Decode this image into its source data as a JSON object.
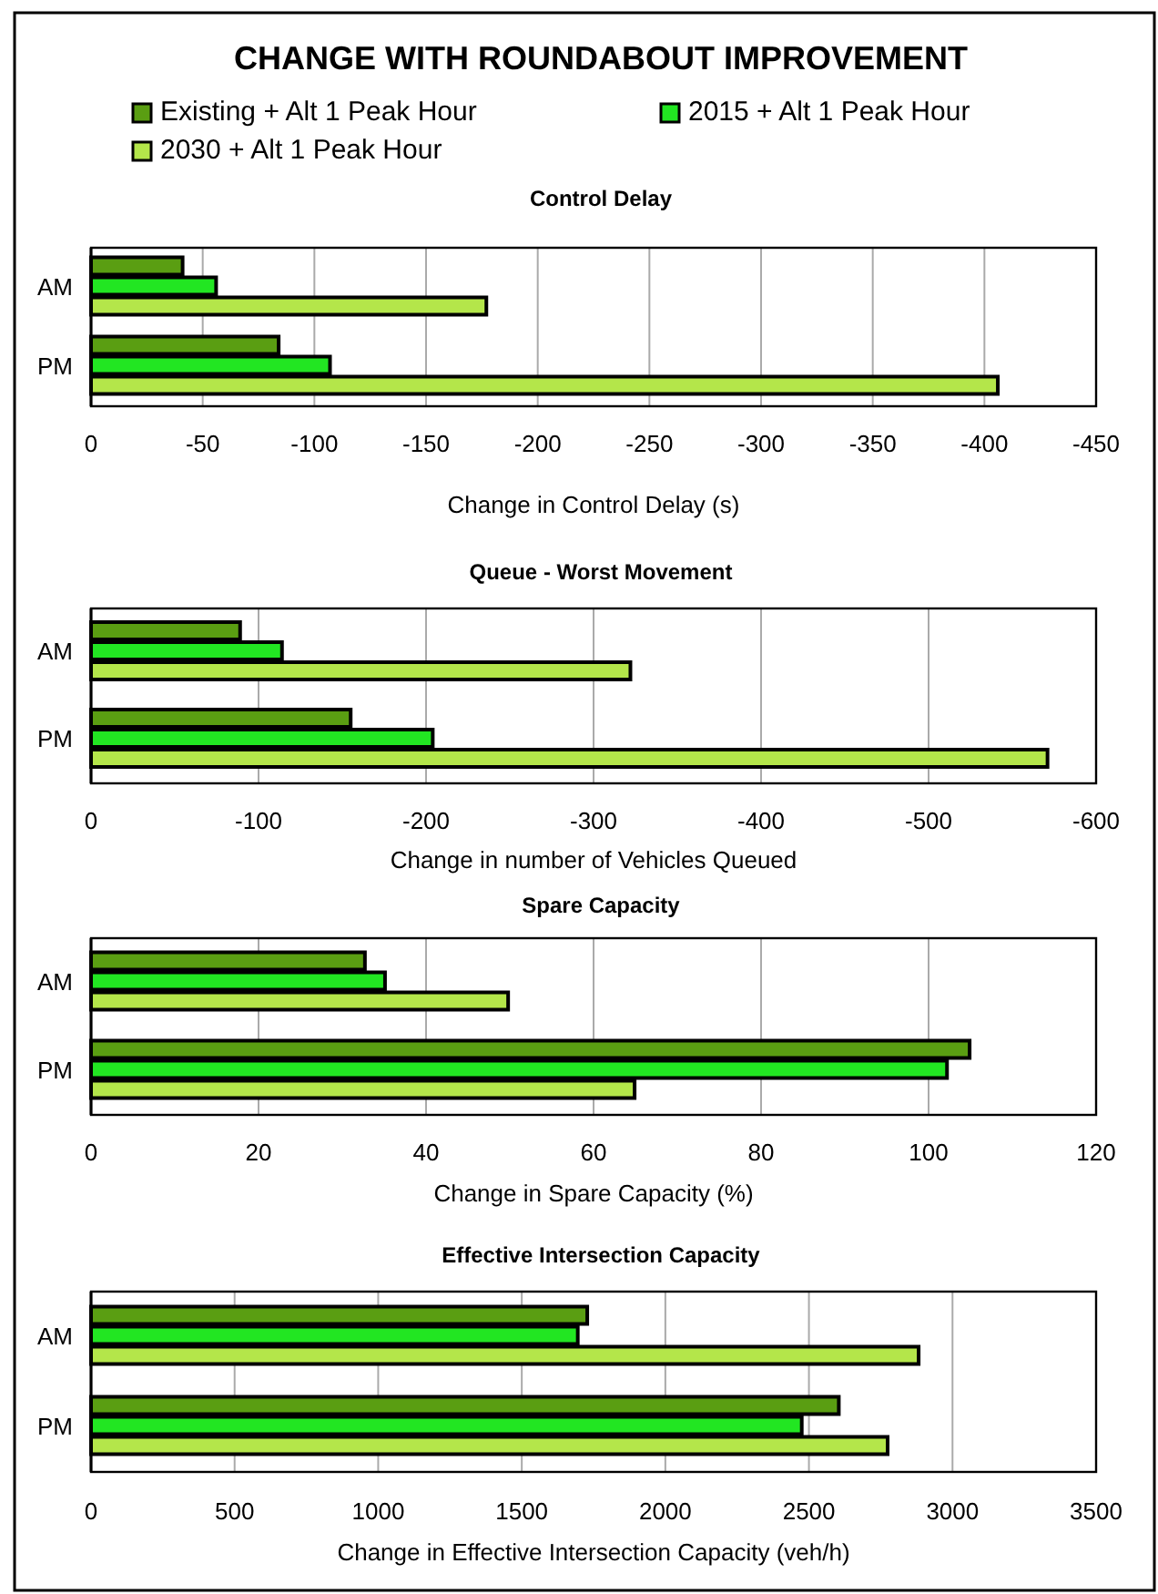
{
  "chart_data": [
    {
      "type": "bar",
      "orientation": "horizontal",
      "title": "CHANGE WITH ROUNDABOUT IMPROVEMENT",
      "subtitle": "Control Delay",
      "legend": "top",
      "xlabel": "Change in  Control Delay (s)",
      "categories": [
        "AM",
        "PM"
      ],
      "xlim": [
        0,
        -450
      ],
      "xticks": [
        0,
        -50,
        -100,
        -150,
        -200,
        -250,
        -300,
        -350,
        -400,
        -450
      ],
      "grid": "x",
      "series": [
        {
          "name": "Existing + Alt 1 Peak Hour",
          "color": "#5a9e12",
          "values": [
            -41,
            -84
          ]
        },
        {
          "name": "2015 + Alt 1 Peak Hour",
          "color": "#22e622",
          "values": [
            -56,
            -107
          ]
        },
        {
          "name": "2030 + Alt 1 Peak Hour",
          "color": "#b4e64a",
          "values": [
            -177,
            -406
          ]
        }
      ]
    },
    {
      "type": "bar",
      "orientation": "horizontal",
      "title": "Queue - Worst Movement",
      "xlabel": "Change in number of Vehicles Queued",
      "categories": [
        "AM",
        "PM"
      ],
      "xlim": [
        0,
        -600
      ],
      "xticks": [
        0,
        -100,
        -200,
        -300,
        -400,
        -500,
        -600
      ],
      "grid": "x",
      "series": [
        {
          "color": "#5a9e12",
          "values": [
            -89,
            -155
          ]
        },
        {
          "color": "#22e622",
          "values": [
            -114,
            -204
          ]
        },
        {
          "color": "#b4e64a",
          "values": [
            -322,
            -571
          ]
        }
      ]
    },
    {
      "type": "bar",
      "orientation": "horizontal",
      "title": "Spare Capacity",
      "xlabel": "Change in Spare Capacity (%)",
      "categories": [
        "AM",
        "PM"
      ],
      "xlim": [
        0,
        120
      ],
      "xticks": [
        0,
        20,
        40,
        60,
        80,
        100,
        120
      ],
      "grid": "x",
      "series": [
        {
          "color": "#5a9e12",
          "values": [
            32.7,
            104.9
          ]
        },
        {
          "color": "#22e622",
          "values": [
            35.1,
            102.2
          ]
        },
        {
          "color": "#b4e64a",
          "values": [
            49.8,
            64.9
          ]
        }
      ]
    },
    {
      "type": "bar",
      "orientation": "horizontal",
      "title": "Effective Intersection Capacity",
      "xlabel": "Change in  Effective Intersection Capacity (veh/h)",
      "categories": [
        "AM",
        "PM"
      ],
      "xlim": [
        0,
        3500
      ],
      "xticks": [
        0,
        500,
        1000,
        1500,
        2000,
        2500,
        3000,
        3500
      ],
      "grid": "x",
      "series": [
        {
          "color": "#5a9e12",
          "values": [
            1728,
            2604
          ]
        },
        {
          "color": "#22e622",
          "values": [
            1695,
            2475
          ]
        },
        {
          "color": "#b4e64a",
          "values": [
            2882,
            2774
          ]
        }
      ]
    }
  ]
}
